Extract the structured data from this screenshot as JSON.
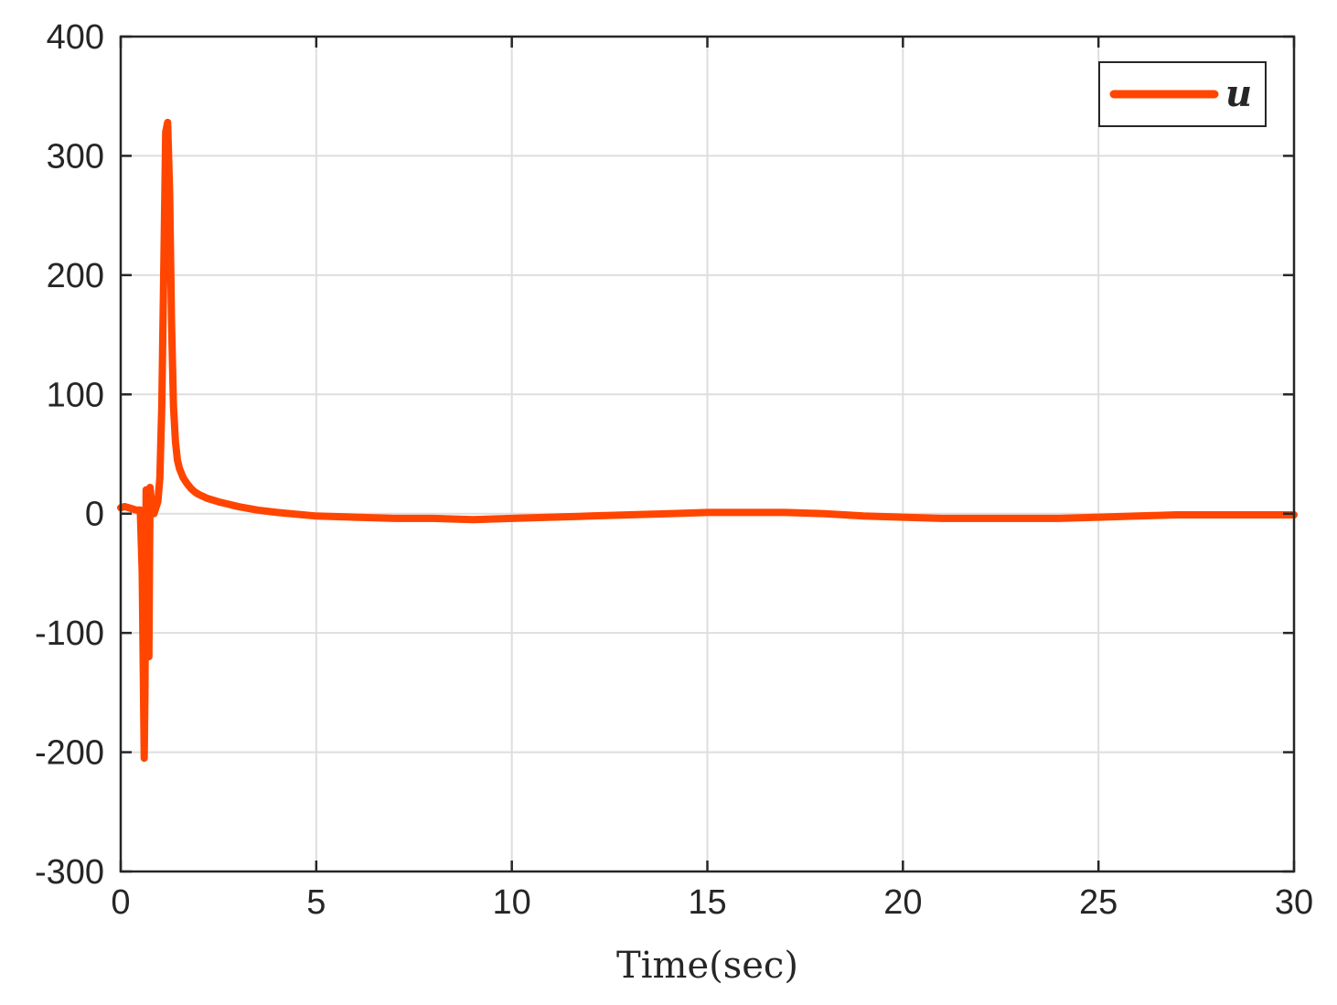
{
  "chart_data": {
    "type": "line",
    "title": "",
    "xlabel": "Time(sec)",
    "ylabel": "",
    "xlim": [
      0,
      30
    ],
    "ylim": [
      -300,
      400
    ],
    "xticks": [
      0,
      5,
      10,
      15,
      20,
      25,
      30
    ],
    "yticks": [
      -300,
      -200,
      -100,
      0,
      100,
      200,
      300,
      400
    ],
    "xtick_labels": [
      "0",
      "5",
      "10",
      "15",
      "20",
      "25",
      "30"
    ],
    "ytick_labels": [
      "-300",
      "-200",
      "-100",
      "0",
      "100",
      "200",
      "300",
      "400"
    ],
    "grid": true,
    "legend_position": "top-right",
    "colors": {
      "series": "#ff4500",
      "axis": "#262626",
      "grid": "#dedede"
    },
    "series": [
      {
        "name": "u",
        "x": [
          0,
          0.1,
          0.2,
          0.3,
          0.4,
          0.5,
          0.55,
          0.6,
          0.62,
          0.65,
          0.7,
          0.72,
          0.75,
          0.8,
          0.85,
          0.9,
          0.95,
          1.0,
          1.05,
          1.1,
          1.15,
          1.2,
          1.25,
          1.3,
          1.35,
          1.4,
          1.45,
          1.5,
          1.6,
          1.7,
          1.8,
          1.9,
          2.0,
          2.2,
          2.5,
          3.0,
          3.5,
          4.0,
          5.0,
          6.0,
          7.0,
          8.0,
          9.0,
          10.0,
          11.0,
          12.0,
          13.0,
          14.0,
          15.0,
          16.0,
          17.0,
          18.0,
          19.0,
          20.0,
          21.0,
          22.0,
          23.0,
          24.0,
          25.0,
          26.0,
          27.0,
          28.0,
          29.0,
          30.0
        ],
        "y": [
          5,
          6,
          5,
          4,
          3,
          3,
          -50,
          -205,
          -150,
          20,
          5,
          -120,
          22,
          5,
          0,
          5,
          10,
          30,
          90,
          200,
          320,
          328,
          270,
          160,
          90,
          60,
          45,
          38,
          30,
          25,
          21,
          18,
          16,
          13,
          10,
          6,
          3,
          1,
          -2,
          -3,
          -4,
          -4,
          -5,
          -4,
          -3,
          -2,
          -1,
          0,
          1,
          1,
          1,
          0,
          -2,
          -3,
          -4,
          -4,
          -4,
          -4,
          -3,
          -2,
          -1,
          -1,
          -1,
          -1
        ]
      }
    ]
  }
}
